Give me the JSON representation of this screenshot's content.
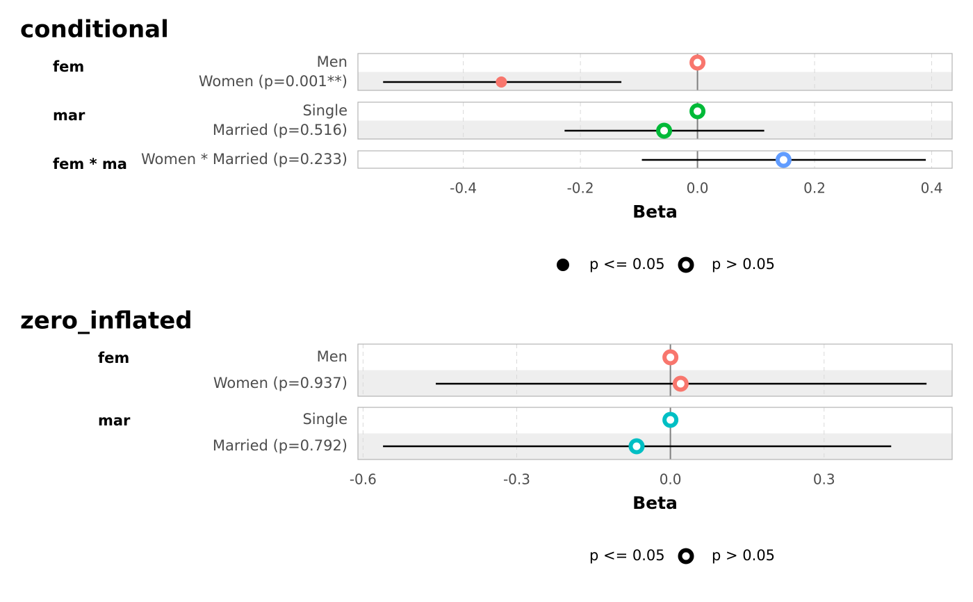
{
  "chart_data": [
    {
      "type": "forest",
      "title": "conditional",
      "xlabel": "Beta",
      "xlim": [
        -0.58,
        0.435
      ],
      "xticks": [
        -0.4,
        -0.2,
        0.0,
        0.2,
        0.4
      ],
      "xtick_labels": [
        "-0.4",
        "-0.2",
        "0.0",
        "0.2",
        "0.4"
      ],
      "grid": true,
      "groups": [
        {
          "name": "fem",
          "rows": [
            {
              "label": "Men",
              "estimate": 0.0,
              "ci": null,
              "significant": false,
              "color": "#F8766D"
            },
            {
              "label": "Women (p=0.001**)",
              "estimate": -0.335,
              "ci": [
                -0.537,
                -0.13
              ],
              "significant": true,
              "color": "#F8766D"
            }
          ]
        },
        {
          "name": "mar",
          "rows": [
            {
              "label": "Single",
              "estimate": 0.0,
              "ci": null,
              "significant": false,
              "color": "#00BA38"
            },
            {
              "label": "Married (p=0.516)",
              "estimate": -0.057,
              "ci": [
                -0.227,
                0.114
              ],
              "significant": false,
              "color": "#00BA38"
            }
          ]
        },
        {
          "name": "fem * ma",
          "rows": [
            {
              "label": "Women * Married (p=0.233)",
              "estimate": 0.147,
              "ci": [
                -0.095,
                0.39
              ],
              "significant": false,
              "color": "#619CFF"
            }
          ]
        }
      ],
      "legend": {
        "position": "bottom",
        "items": [
          {
            "label": "p <= 0.05",
            "shape": "filled-circle"
          },
          {
            "label": "p > 0.05",
            "shape": "open-circle"
          }
        ]
      }
    },
    {
      "type": "forest",
      "title": "zero_inflated",
      "xlabel": "Beta",
      "xlim": [
        -0.61,
        0.55
      ],
      "xticks": [
        -0.6,
        -0.3,
        0.0,
        0.3
      ],
      "xtick_labels": [
        "-0.6",
        "-0.3",
        "0.0",
        "0.3"
      ],
      "grid": true,
      "groups": [
        {
          "name": "fem",
          "rows": [
            {
              "label": "Men",
              "estimate": 0.0,
              "ci": null,
              "significant": false,
              "color": "#F8766D"
            },
            {
              "label": "Women (p=0.937)",
              "estimate": 0.02,
              "ci": [
                -0.458,
                0.5
              ],
              "significant": false,
              "color": "#F8766D"
            }
          ]
        },
        {
          "name": "mar",
          "rows": [
            {
              "label": "Single",
              "estimate": 0.0,
              "ci": null,
              "significant": false,
              "color": "#00BFC4"
            },
            {
              "label": "Married (p=0.792)",
              "estimate": -0.066,
              "ci": [
                -0.561,
                0.431
              ],
              "significant": false,
              "color": "#00BFC4"
            }
          ]
        }
      ],
      "legend": {
        "position": "bottom",
        "items": [
          {
            "label": "p <= 0.05",
            "shape": "none"
          },
          {
            "label": "p > 0.05",
            "shape": "open-circle"
          }
        ]
      }
    }
  ]
}
